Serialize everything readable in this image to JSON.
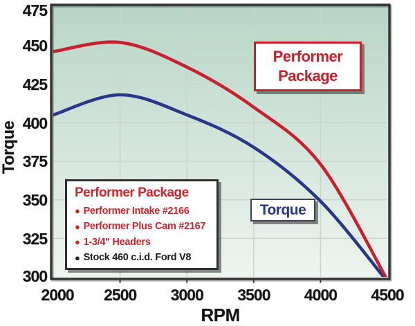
{
  "chart_data": {
    "type": "line",
    "title": "",
    "xlabel": "RPM",
    "ylabel": "Torque",
    "x": [
      2000,
      2500,
      3000,
      3500,
      4000,
      4500
    ],
    "x_ticks": [
      "2000",
      "2500",
      "3000",
      "3500",
      "4000",
      "4500"
    ],
    "y_ticks": [
      "475",
      "450",
      "425",
      "400",
      "375",
      "350",
      "325",
      "300"
    ],
    "xlim": [
      2000,
      4500
    ],
    "ylim": [
      300,
      475
    ],
    "grid": true,
    "legend_position": "inside lower-left",
    "series": [
      {
        "name": "Performer Package",
        "color": "#c9202b",
        "values": [
          446,
          452,
          436,
          410,
          373,
          298
        ]
      },
      {
        "name": "Torque (stock)",
        "color": "#28368c",
        "values": [
          405,
          418,
          405,
          384,
          349,
          297
        ]
      }
    ]
  },
  "axes": {
    "x_label": "RPM",
    "y_label": "Torque"
  },
  "annotations": {
    "performer_callout": {
      "line1": "Performer",
      "line2": "Package",
      "color": "#c9202b"
    },
    "torque_callout": {
      "text": "Torque",
      "color": "#28368c"
    }
  },
  "legend": {
    "title": "Performer Package",
    "title_color": "#d2232a",
    "items": [
      {
        "text": "Performer Intake #2166",
        "color": "#d2232a"
      },
      {
        "text": "Performer Plus Cam #2167",
        "color": "#d2232a"
      },
      {
        "text": "1-3/4\" Headers",
        "color": "#d2232a"
      },
      {
        "text": "Stock 460 c.i.d. Ford V8",
        "color": "#1c1c1c"
      }
    ]
  },
  "colors": {
    "page_bg": "#ffffff",
    "plot_bg_top": "#b6d6c6",
    "plot_bg_bottom": "#eff4ef",
    "gridline": "#c9d6cb",
    "frame": "#333333"
  }
}
